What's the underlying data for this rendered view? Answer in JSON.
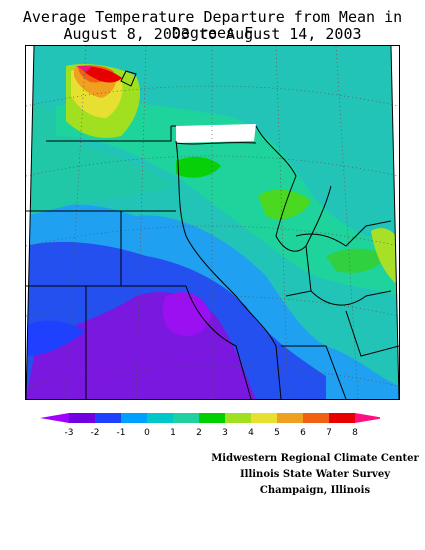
{
  "title": {
    "line1": "Average Temperature Departure from Mean in Degrees F",
    "line2": "August 8, 2003 to August 14, 2003"
  },
  "legend": {
    "ticks": [
      "-3",
      "-2",
      "-1",
      "0",
      "1",
      "2",
      "3",
      "4",
      "5",
      "6",
      "7",
      "8"
    ],
    "colors": [
      "#a000ff",
      "#7000e0",
      "#2040ff",
      "#00a0ff",
      "#00c8c8",
      "#20d0a0",
      "#00d000",
      "#a0e020",
      "#e8e030",
      "#f0a020",
      "#f06010",
      "#e80000",
      "#ff1080"
    ]
  },
  "credits": {
    "line1": "Midwestern Regional Climate Center",
    "line2": "Illinois State Water Survey",
    "line3": "Champaign, Illinois"
  }
}
